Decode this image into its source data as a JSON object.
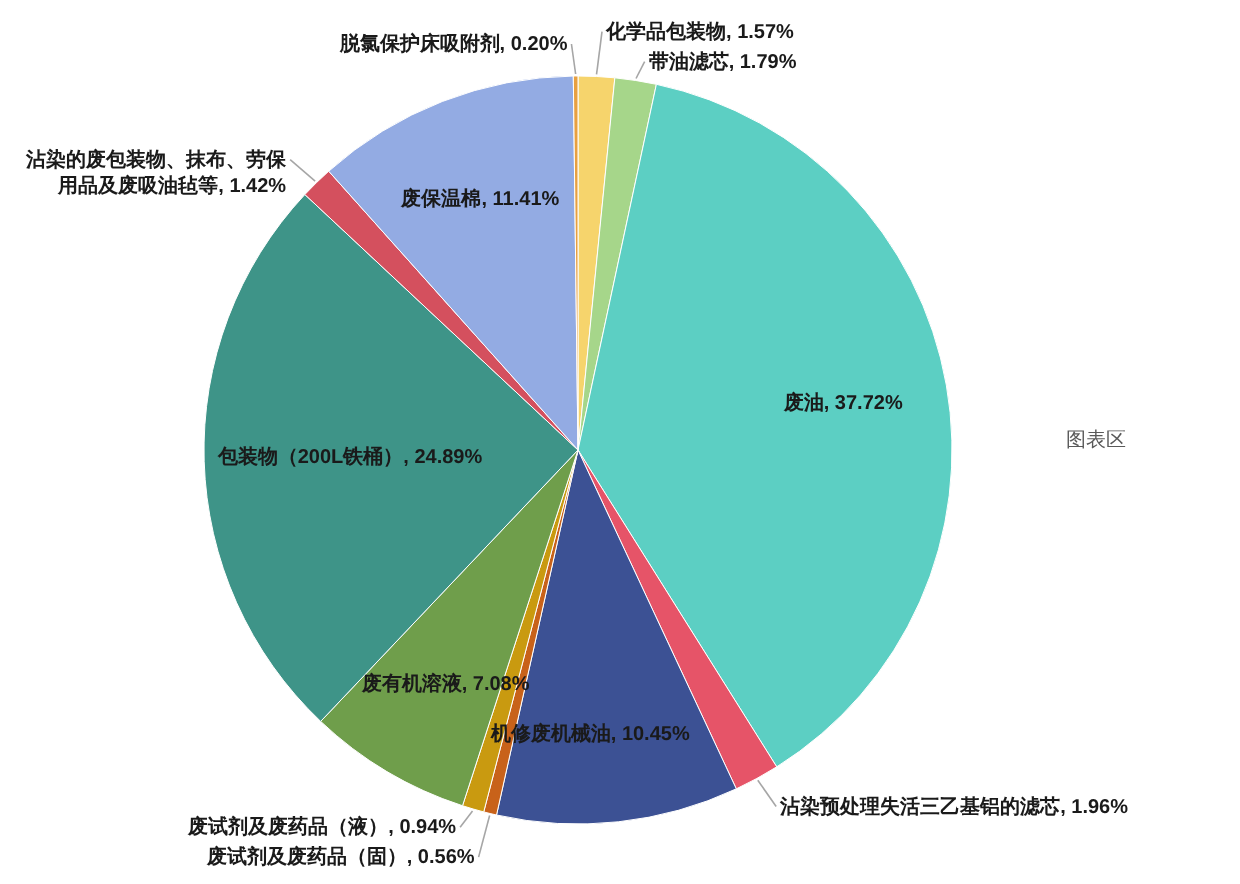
{
  "chart_data": {
    "type": "pie",
    "categories": [
      "化学品包装物",
      "带油滤芯",
      "废油",
      "沾染预处理失活三乙基铝的滤芯",
      "机修废机械油",
      "废试剂及废药品（固）",
      "废试剂及废药品（液）",
      "废有机溶液",
      "包装物（200L铁桶）",
      "沾染的废包装物、抹布、劳保用品及废吸油毡等",
      "废保温棉",
      "脱氯保护床吸附剂"
    ],
    "values": [
      1.57,
      1.79,
      37.72,
      1.96,
      10.45,
      0.56,
      0.94,
      7.08,
      24.89,
      1.42,
      11.41,
      0.2
    ],
    "colors": [
      "#f6d46c",
      "#a6d68a",
      "#5ccfc3",
      "#e65468",
      "#3c5194",
      "#c8621a",
      "#c99a10",
      "#6f9e4b",
      "#3e9488",
      "#d4505e",
      "#93abe3",
      "#e8a040"
    ],
    "value_labels": [
      "1.57%",
      "1.79%",
      "37.72%",
      "1.96%",
      "10.45%",
      "0.56%",
      "0.94%",
      "7.08%",
      "24.89%",
      "1.42%",
      "11.41%",
      "0.20%"
    ],
    "annotations": [
      "图表区"
    ]
  }
}
